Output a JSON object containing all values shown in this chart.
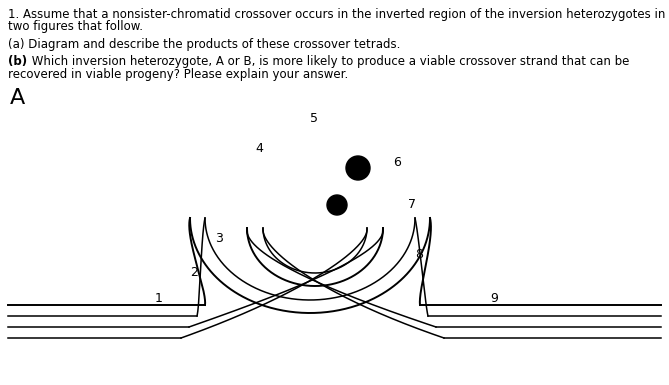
{
  "title_line1": "1. Assume that a nonsister-chromatid crossover occurs in the inverted region of the inversion heterozygotes in the",
  "title_line2": "two figures that follow.",
  "sub_a": "(a) Diagram and describe the products of these crossover tetrads.",
  "sub_b_bold": "(b)",
  "sub_b_rest": " Which inversion heterozygote, A or B, is more likely to produce a viable crossover strand that can be",
  "sub_b_line2": "recovered in viable progeny? Please explain your answer.",
  "label_A": "A",
  "bg_color": "#ffffff",
  "line_color": "#000000",
  "lw_outer": 1.4,
  "lw_inner": 1.1
}
